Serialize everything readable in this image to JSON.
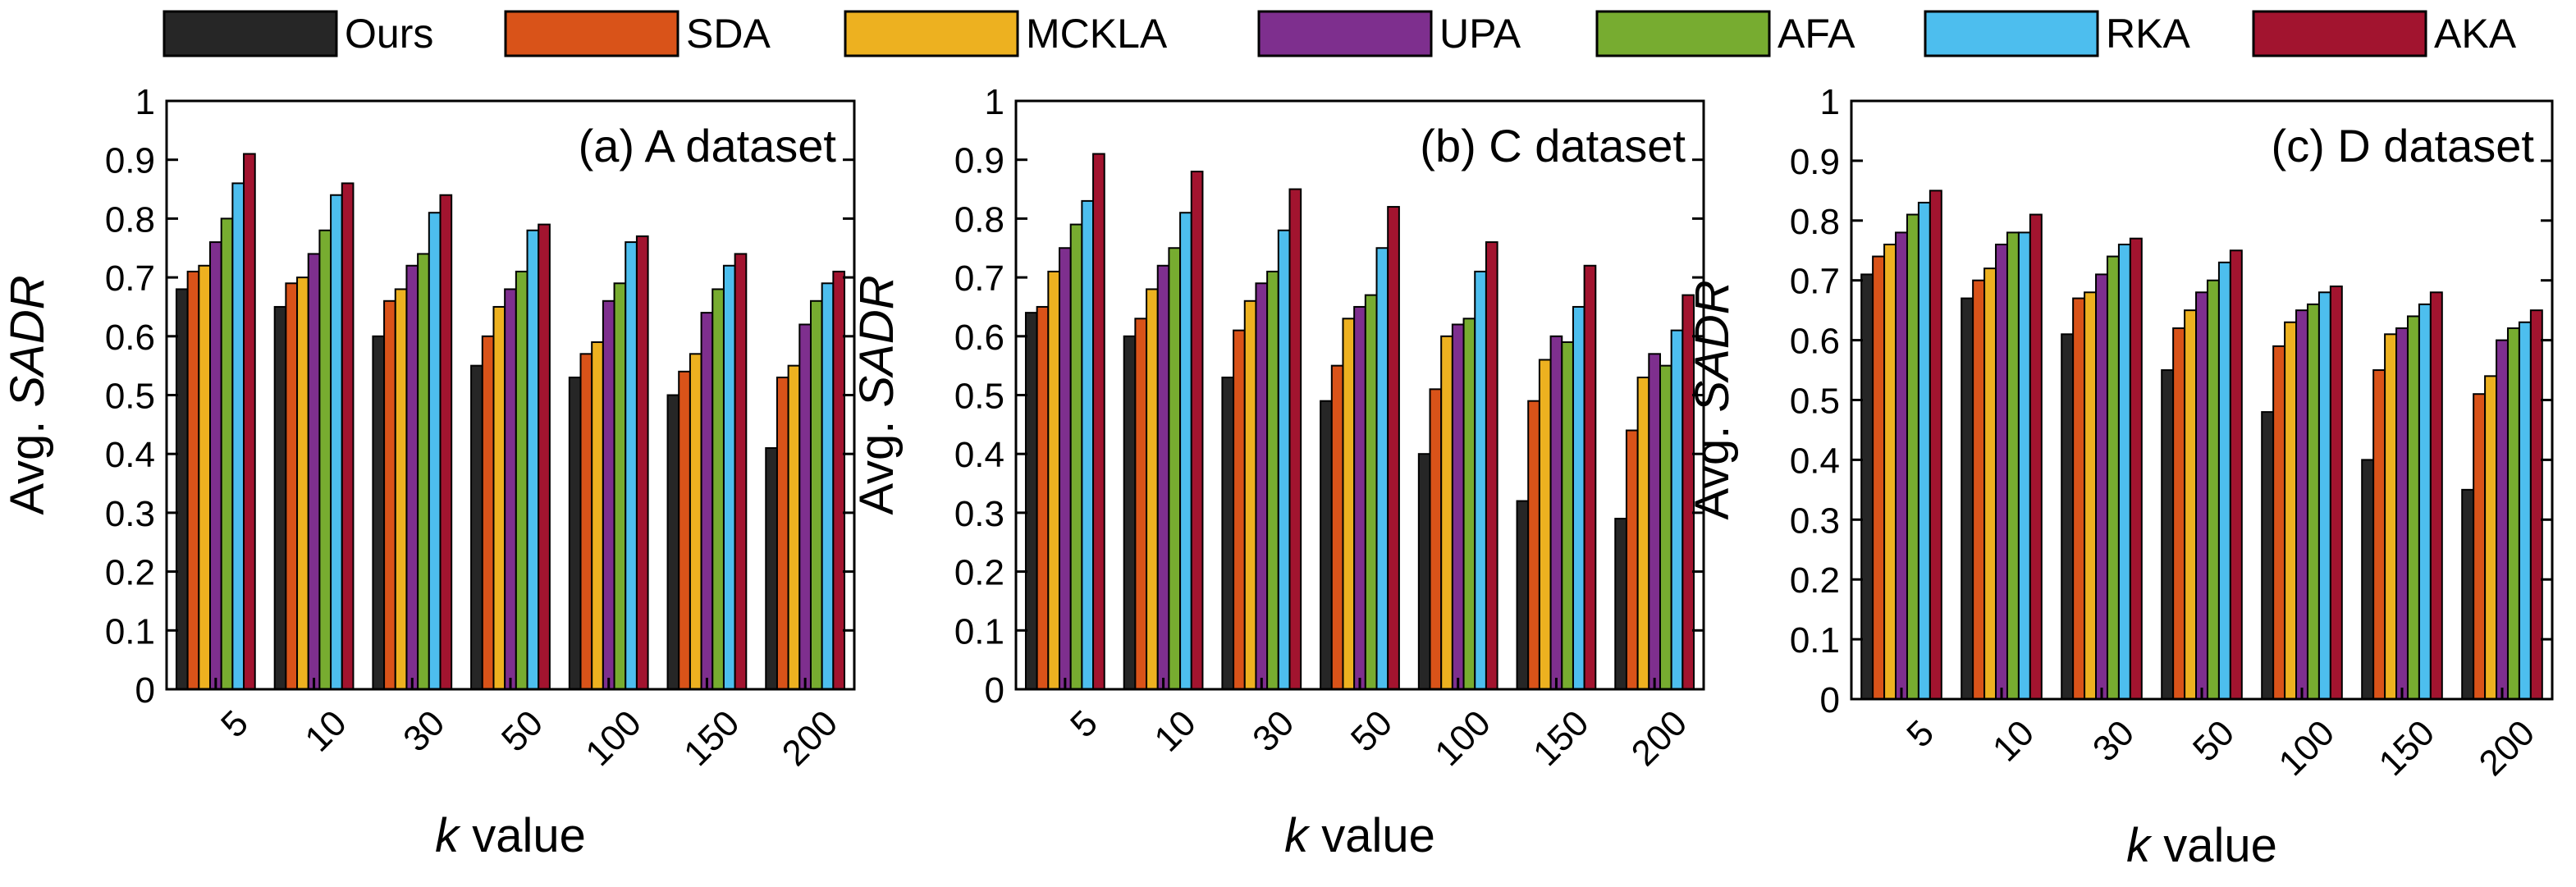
{
  "legend": [
    "Ours",
    "SDA",
    "MCKLA",
    "UPA",
    "AFA",
    "RKA",
    "AKA"
  ],
  "colors": {
    "Ours": "#262626",
    "SDA": "#D95319",
    "MCKLA": "#EDB120",
    "UPA": "#7E2F8E",
    "AFA": "#77AC30",
    "RKA": "#4DBEEE",
    "AKA": "#A2142F"
  },
  "chart_data": [
    {
      "type": "bar",
      "title": "(a) A dataset",
      "xlabel_italic": "k",
      "xlabel_rest": " value",
      "ylabel_prefix": "Avg. ",
      "ylabel_italic": "SADR",
      "categories": [
        "5",
        "10",
        "30",
        "50",
        "100",
        "150",
        "200"
      ],
      "yticks": [
        "0",
        "0.1",
        "0.2",
        "0.3",
        "0.4",
        "0.5",
        "0.6",
        "0.7",
        "0.8",
        "0.9",
        "1"
      ],
      "ylim": [
        0,
        1
      ],
      "series": [
        {
          "name": "Ours",
          "values": [
            0.68,
            0.65,
            0.6,
            0.55,
            0.53,
            0.5,
            0.41
          ]
        },
        {
          "name": "SDA",
          "values": [
            0.71,
            0.69,
            0.66,
            0.6,
            0.57,
            0.54,
            0.53
          ]
        },
        {
          "name": "MCKLA",
          "values": [
            0.72,
            0.7,
            0.68,
            0.65,
            0.59,
            0.57,
            0.55
          ]
        },
        {
          "name": "UPA",
          "values": [
            0.76,
            0.74,
            0.72,
            0.68,
            0.66,
            0.64,
            0.62
          ]
        },
        {
          "name": "AFA",
          "values": [
            0.8,
            0.78,
            0.74,
            0.71,
            0.69,
            0.68,
            0.66
          ]
        },
        {
          "name": "RKA",
          "values": [
            0.86,
            0.84,
            0.81,
            0.78,
            0.76,
            0.72,
            0.69
          ]
        },
        {
          "name": "AKA",
          "values": [
            0.91,
            0.86,
            0.84,
            0.79,
            0.77,
            0.74,
            0.71
          ]
        }
      ]
    },
    {
      "type": "bar",
      "title": "(b) C dataset",
      "xlabel_italic": "k",
      "xlabel_rest": " value",
      "ylabel_prefix": "Avg. ",
      "ylabel_italic": "SADR",
      "categories": [
        "5",
        "10",
        "30",
        "50",
        "100",
        "150",
        "200"
      ],
      "yticks": [
        "0",
        "0.1",
        "0.2",
        "0.3",
        "0.4",
        "0.5",
        "0.6",
        "0.7",
        "0.8",
        "0.9",
        "1"
      ],
      "ylim": [
        0,
        1
      ],
      "series": [
        {
          "name": "Ours",
          "values": [
            0.64,
            0.6,
            0.53,
            0.49,
            0.4,
            0.32,
            0.29
          ]
        },
        {
          "name": "SDA",
          "values": [
            0.65,
            0.63,
            0.61,
            0.55,
            0.51,
            0.49,
            0.44
          ]
        },
        {
          "name": "MCKLA",
          "values": [
            0.71,
            0.68,
            0.66,
            0.63,
            0.6,
            0.56,
            0.53
          ]
        },
        {
          "name": "UPA",
          "values": [
            0.75,
            0.72,
            0.69,
            0.65,
            0.62,
            0.6,
            0.57
          ]
        },
        {
          "name": "AFA",
          "values": [
            0.79,
            0.75,
            0.71,
            0.67,
            0.63,
            0.59,
            0.55
          ]
        },
        {
          "name": "RKA",
          "values": [
            0.83,
            0.81,
            0.78,
            0.75,
            0.71,
            0.65,
            0.61
          ]
        },
        {
          "name": "AKA",
          "values": [
            0.91,
            0.88,
            0.85,
            0.82,
            0.76,
            0.72,
            0.67
          ]
        }
      ]
    },
    {
      "type": "bar",
      "title": "(c) D dataset",
      "xlabel_italic": "k",
      "xlabel_rest": " value",
      "ylabel_prefix": "Avg. ",
      "ylabel_italic": "SADR",
      "categories": [
        "5",
        "10",
        "30",
        "50",
        "100",
        "150",
        "200"
      ],
      "yticks": [
        "0",
        "0.1",
        "0.2",
        "0.3",
        "0.4",
        "0.5",
        "0.6",
        "0.7",
        "0.8",
        "0.9",
        "1"
      ],
      "ylim": [
        0,
        1
      ],
      "series": [
        {
          "name": "Ours",
          "values": [
            0.71,
            0.67,
            0.61,
            0.55,
            0.48,
            0.4,
            0.35
          ]
        },
        {
          "name": "SDA",
          "values": [
            0.74,
            0.7,
            0.67,
            0.62,
            0.59,
            0.55,
            0.51
          ]
        },
        {
          "name": "MCKLA",
          "values": [
            0.76,
            0.72,
            0.68,
            0.65,
            0.63,
            0.61,
            0.54
          ]
        },
        {
          "name": "UPA",
          "values": [
            0.78,
            0.76,
            0.71,
            0.68,
            0.65,
            0.62,
            0.6
          ]
        },
        {
          "name": "AFA",
          "values": [
            0.81,
            0.78,
            0.74,
            0.7,
            0.66,
            0.64,
            0.62
          ]
        },
        {
          "name": "RKA",
          "values": [
            0.83,
            0.78,
            0.76,
            0.73,
            0.68,
            0.66,
            0.63
          ]
        },
        {
          "name": "AKA",
          "values": [
            0.85,
            0.81,
            0.77,
            0.75,
            0.69,
            0.68,
            0.65
          ]
        }
      ]
    }
  ]
}
